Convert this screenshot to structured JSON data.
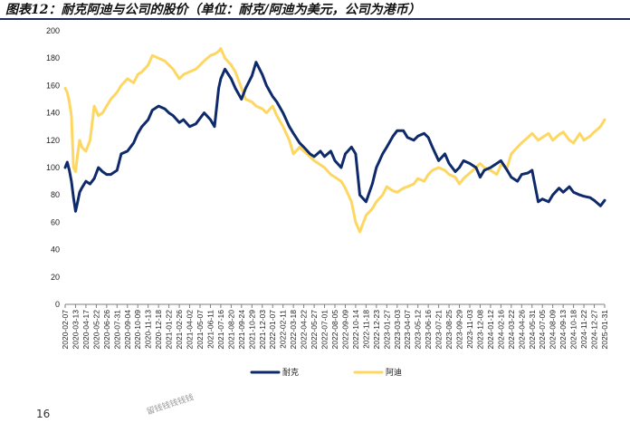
{
  "figure": {
    "title": "图表12：耐克阿迪与公司的股价（单位：耐克/阿迪为美元，公司为港币）",
    "page_number": "16",
    "watermark": "留钱钱钱钱钱"
  },
  "colors": {
    "series_nike": "#0e2a6b",
    "series_adidas": "#fdd762",
    "axis": "#7f7f7f"
  },
  "chart_data": {
    "type": "line",
    "title": "",
    "xlabel": "",
    "ylabel": "",
    "ylim": [
      0,
      200
    ],
    "yticks": [
      0,
      20,
      40,
      60,
      80,
      100,
      120,
      140,
      160,
      180,
      200
    ],
    "grid": false,
    "legend_position": "bottom-center",
    "x_tick_labels": [
      "2020-02-07",
      "2020-03-13",
      "2020-04-17",
      "2020-05-22",
      "2020-06-26",
      "2020-07-31",
      "2020-09-04",
      "2020-10-09",
      "2020-11-13",
      "2020-12-18",
      "2021-01-22",
      "2021-02-26",
      "2021-04-02",
      "2021-05-07",
      "2021-06-11",
      "2021-07-16",
      "2021-08-20",
      "2021-09-24",
      "2021-10-29",
      "2021-12-03",
      "2022-01-07",
      "2022-02-11",
      "2022-03-18",
      "2022-04-22",
      "2022-05-27",
      "2022-07-01",
      "2022-08-05",
      "2022-09-09",
      "2022-10-14",
      "2022-11-18",
      "2022-12-23",
      "2023-01-27",
      "2023-03-03",
      "2023-04-07",
      "2023-05-12",
      "2023-06-16",
      "2023-07-21",
      "2023-08-25",
      "2023-09-29",
      "2023-11-03",
      "2023-12-08",
      "2024-01-12",
      "2024-02-16",
      "2024-03-22",
      "2024-04-26",
      "2024-05-31",
      "2024-07-05",
      "2024-08-09",
      "2024-09-13",
      "2024-10-18",
      "2024-11-22",
      "2024-12-27",
      "2025-01-31"
    ],
    "x_range": [
      "2020-02-07",
      "2025-01-31"
    ],
    "series": [
      {
        "name": "耐克",
        "x": [
          "2020-02-07",
          "2020-02-14",
          "2020-02-21",
          "2020-02-28",
          "2020-03-06",
          "2020-03-13",
          "2020-03-20",
          "2020-03-27",
          "2020-04-03",
          "2020-04-17",
          "2020-05-01",
          "2020-05-15",
          "2020-05-29",
          "2020-06-12",
          "2020-06-26",
          "2020-07-10",
          "2020-07-31",
          "2020-08-14",
          "2020-09-04",
          "2020-09-25",
          "2020-10-09",
          "2020-10-23",
          "2020-11-13",
          "2020-11-27",
          "2020-12-18",
          "2021-01-08",
          "2021-01-22",
          "2021-02-05",
          "2021-02-26",
          "2021-03-12",
          "2021-04-02",
          "2021-04-23",
          "2021-05-07",
          "2021-05-21",
          "2021-06-11",
          "2021-06-25",
          "2021-07-09",
          "2021-07-16",
          "2021-07-30",
          "2021-08-20",
          "2021-09-03",
          "2021-09-24",
          "2021-10-08",
          "2021-10-29",
          "2021-11-12",
          "2021-12-03",
          "2021-12-17",
          "2022-01-07",
          "2022-01-21",
          "2022-02-11",
          "2022-03-04",
          "2022-03-18",
          "2022-04-08",
          "2022-04-22",
          "2022-05-13",
          "2022-05-27",
          "2022-06-17",
          "2022-07-01",
          "2022-07-22",
          "2022-08-05",
          "2022-08-26",
          "2022-09-09",
          "2022-09-30",
          "2022-10-14",
          "2022-10-28",
          "2022-11-18",
          "2022-12-09",
          "2022-12-23",
          "2023-01-13",
          "2023-01-27",
          "2023-02-17",
          "2023-03-03",
          "2023-03-24",
          "2023-04-07",
          "2023-04-28",
          "2023-05-12",
          "2023-06-02",
          "2023-06-16",
          "2023-06-30",
          "2023-07-21",
          "2023-08-11",
          "2023-08-25",
          "2023-09-15",
          "2023-09-29",
          "2023-10-13",
          "2023-11-03",
          "2023-11-24",
          "2023-12-08",
          "2023-12-22",
          "2024-01-12",
          "2024-02-02",
          "2024-02-16",
          "2024-03-08",
          "2024-03-22",
          "2024-04-12",
          "2024-04-26",
          "2024-05-17",
          "2024-05-31",
          "2024-06-21",
          "2024-07-05",
          "2024-07-26",
          "2024-08-09",
          "2024-08-30",
          "2024-09-13",
          "2024-10-04",
          "2024-10-18",
          "2024-11-08",
          "2024-11-22",
          "2024-12-13",
          "2024-12-27",
          "2025-01-17",
          "2025-01-31"
        ],
        "values": [
          100,
          104,
          98,
          90,
          78,
          68,
          75,
          82,
          85,
          90,
          88,
          92,
          100,
          97,
          95,
          95,
          98,
          110,
          112,
          118,
          125,
          130,
          135,
          142,
          145,
          143,
          140,
          138,
          133,
          135,
          130,
          132,
          136,
          140,
          135,
          130,
          158,
          165,
          172,
          165,
          158,
          150,
          158,
          167,
          177,
          168,
          160,
          152,
          148,
          140,
          130,
          125,
          118,
          115,
          110,
          108,
          112,
          108,
          112,
          105,
          100,
          110,
          115,
          110,
          80,
          75,
          88,
          100,
          110,
          115,
          123,
          127,
          127,
          122,
          120,
          123,
          125,
          122,
          115,
          105,
          110,
          103,
          97,
          100,
          105,
          103,
          100,
          93,
          98,
          100,
          103,
          105,
          98,
          93,
          90,
          95,
          96,
          98,
          75,
          77,
          75,
          80,
          85,
          82,
          86,
          82,
          80,
          79,
          78,
          76,
          72,
          76
        ]
      },
      {
        "name": "阿迪",
        "x": [
          "2020-02-07",
          "2020-02-14",
          "2020-02-21",
          "2020-02-28",
          "2020-03-06",
          "2020-03-13",
          "2020-03-20",
          "2020-03-27",
          "2020-04-03",
          "2020-04-17",
          "2020-05-01",
          "2020-05-15",
          "2020-05-29",
          "2020-06-12",
          "2020-06-26",
          "2020-07-10",
          "2020-07-31",
          "2020-08-14",
          "2020-09-04",
          "2020-09-25",
          "2020-10-09",
          "2020-10-23",
          "2020-11-13",
          "2020-11-27",
          "2020-12-18",
          "2021-01-08",
          "2021-01-22",
          "2021-02-05",
          "2021-02-26",
          "2021-03-12",
          "2021-04-02",
          "2021-04-23",
          "2021-05-07",
          "2021-05-21",
          "2021-06-11",
          "2021-06-25",
          "2021-07-09",
          "2021-07-16",
          "2021-07-30",
          "2021-08-20",
          "2021-09-03",
          "2021-09-24",
          "2021-10-08",
          "2021-10-29",
          "2021-11-12",
          "2021-12-03",
          "2021-12-17",
          "2022-01-07",
          "2022-01-21",
          "2022-02-11",
          "2022-03-04",
          "2022-03-18",
          "2022-04-08",
          "2022-04-22",
          "2022-05-13",
          "2022-05-27",
          "2022-06-17",
          "2022-07-01",
          "2022-07-22",
          "2022-08-05",
          "2022-08-26",
          "2022-09-09",
          "2022-09-30",
          "2022-10-14",
          "2022-10-28",
          "2022-11-18",
          "2022-12-09",
          "2022-12-23",
          "2023-01-13",
          "2023-01-27",
          "2023-02-17",
          "2023-03-03",
          "2023-03-24",
          "2023-04-07",
          "2023-04-28",
          "2023-05-12",
          "2023-06-02",
          "2023-06-16",
          "2023-06-30",
          "2023-07-21",
          "2023-08-11",
          "2023-08-25",
          "2023-09-15",
          "2023-09-29",
          "2023-10-13",
          "2023-11-03",
          "2023-11-24",
          "2023-12-08",
          "2023-12-22",
          "2024-01-12",
          "2024-02-02",
          "2024-02-16",
          "2024-03-08",
          "2024-03-22",
          "2024-04-12",
          "2024-04-26",
          "2024-05-17",
          "2024-05-31",
          "2024-06-21",
          "2024-07-05",
          "2024-07-26",
          "2024-08-09",
          "2024-08-30",
          "2024-09-13",
          "2024-10-04",
          "2024-10-18",
          "2024-11-08",
          "2024-11-22",
          "2024-12-13",
          "2024-12-27",
          "2025-01-17",
          "2025-01-31"
        ],
        "values": [
          158,
          155,
          148,
          138,
          100,
          97,
          110,
          120,
          115,
          112,
          120,
          145,
          138,
          140,
          145,
          150,
          155,
          160,
          165,
          162,
          168,
          170,
          175,
          182,
          180,
          178,
          175,
          172,
          165,
          168,
          170,
          172,
          175,
          178,
          182,
          183,
          185,
          187,
          180,
          175,
          170,
          158,
          150,
          148,
          145,
          143,
          140,
          145,
          138,
          130,
          120,
          110,
          115,
          112,
          108,
          105,
          102,
          100,
          95,
          93,
          90,
          85,
          75,
          60,
          53,
          65,
          70,
          75,
          80,
          86,
          83,
          82,
          85,
          86,
          88,
          92,
          90,
          95,
          98,
          100,
          98,
          95,
          93,
          88,
          92,
          96,
          100,
          103,
          100,
          98,
          95,
          102,
          100,
          110,
          115,
          118,
          122,
          125,
          120,
          122,
          125,
          120,
          124,
          126,
          120,
          118,
          125,
          120,
          123,
          126,
          130,
          135
        ]
      }
    ]
  }
}
